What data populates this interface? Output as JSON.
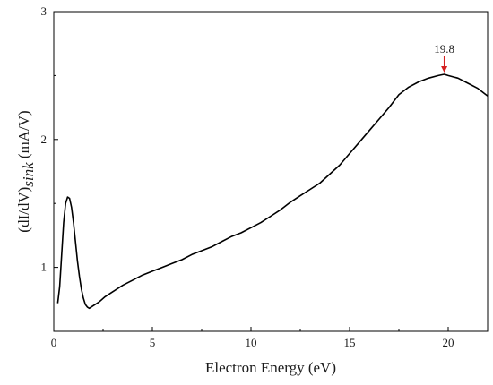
{
  "chart_data": {
    "type": "line",
    "title": "",
    "xlabel": "Electron Energy (eV)",
    "ylabel_parts": [
      "(dI/dV)",
      "sink",
      " (mA/V)"
    ],
    "xlim": [
      0,
      22
    ],
    "ylim": [
      0.5,
      3.0
    ],
    "x_ticks": [
      0,
      5,
      10,
      15,
      20
    ],
    "x_tick_labels": [
      "0",
      "5",
      "10",
      "15",
      "20"
    ],
    "y_ticks": [
      1,
      2,
      3
    ],
    "y_tick_labels": [
      "1",
      "2",
      "3"
    ],
    "grid": false,
    "legend": "none",
    "line_color": "#000000",
    "annotation": {
      "text": "19.8",
      "x": 19.8,
      "y": 2.51,
      "color": "#d42020"
    },
    "series": [
      {
        "points": [
          [
            0.2,
            0.72
          ],
          [
            0.3,
            0.85
          ],
          [
            0.4,
            1.1
          ],
          [
            0.5,
            1.35
          ],
          [
            0.6,
            1.5
          ],
          [
            0.7,
            1.55
          ],
          [
            0.8,
            1.54
          ],
          [
            0.9,
            1.47
          ],
          [
            1.0,
            1.35
          ],
          [
            1.1,
            1.2
          ],
          [
            1.2,
            1.05
          ],
          [
            1.3,
            0.93
          ],
          [
            1.4,
            0.83
          ],
          [
            1.5,
            0.76
          ],
          [
            1.6,
            0.71
          ],
          [
            1.7,
            0.69
          ],
          [
            1.8,
            0.68
          ],
          [
            2.0,
            0.7
          ],
          [
            2.3,
            0.73
          ],
          [
            2.6,
            0.77
          ],
          [
            3.0,
            0.81
          ],
          [
            3.5,
            0.86
          ],
          [
            4.0,
            0.9
          ],
          [
            4.5,
            0.94
          ],
          [
            5.0,
            0.97
          ],
          [
            5.5,
            1.0
          ],
          [
            6.0,
            1.03
          ],
          [
            6.5,
            1.06
          ],
          [
            7.0,
            1.1
          ],
          [
            7.5,
            1.13
          ],
          [
            8.0,
            1.16
          ],
          [
            8.5,
            1.2
          ],
          [
            9.0,
            1.24
          ],
          [
            9.5,
            1.27
          ],
          [
            10.0,
            1.31
          ],
          [
            10.5,
            1.35
          ],
          [
            11.0,
            1.4
          ],
          [
            11.5,
            1.45
          ],
          [
            12.0,
            1.51
          ],
          [
            12.5,
            1.56
          ],
          [
            13.0,
            1.61
          ],
          [
            13.5,
            1.66
          ],
          [
            14.0,
            1.73
          ],
          [
            14.5,
            1.8
          ],
          [
            15.0,
            1.89
          ],
          [
            15.5,
            1.98
          ],
          [
            16.0,
            2.07
          ],
          [
            16.5,
            2.16
          ],
          [
            17.0,
            2.25
          ],
          [
            17.5,
            2.35
          ],
          [
            18.0,
            2.41
          ],
          [
            18.5,
            2.45
          ],
          [
            19.0,
            2.48
          ],
          [
            19.5,
            2.5
          ],
          [
            19.8,
            2.51
          ],
          [
            20.0,
            2.5
          ],
          [
            20.5,
            2.48
          ],
          [
            21.0,
            2.44
          ],
          [
            21.5,
            2.4
          ],
          [
            22.0,
            2.34
          ]
        ]
      }
    ]
  }
}
